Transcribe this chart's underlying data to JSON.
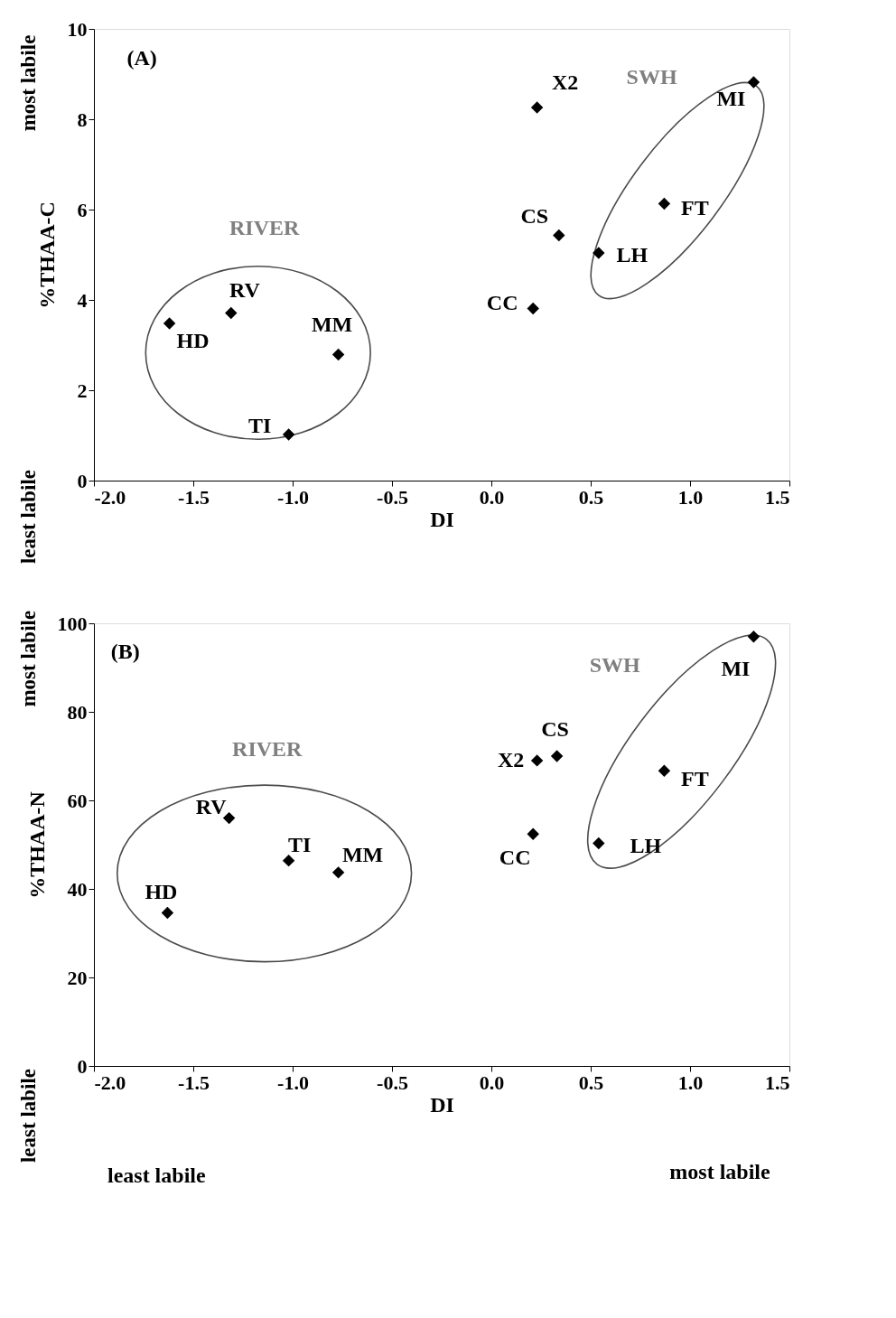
{
  "chart_data": [
    {
      "type": "scatter",
      "xlabel": "DI",
      "ylabel": "%THAA-C",
      "x": [
        -1.62,
        -1.31,
        -0.77,
        -1.02,
        0.21,
        0.34,
        0.23,
        0.54,
        0.87,
        1.32
      ],
      "series": [
        {
          "color": "#000000",
          "values": [
            3.48,
            3.71,
            2.79,
            1.02,
            3.81,
            5.43,
            8.26,
            5.04,
            6.13,
            8.82
          ]
        }
      ],
      "xlim": [
        -2,
        1.5
      ],
      "ylim": [
        0,
        10
      ],
      "xticks": [
        {
          "value": -2,
          "label": "-2.0"
        },
        {
          "value": -1.5,
          "label": "-1.5"
        },
        {
          "value": -1,
          "label": "-1.0"
        },
        {
          "value": -0.5,
          "label": "-0.5"
        },
        {
          "value": 0,
          "label": "0.0"
        },
        {
          "value": 0.5,
          "label": "0.5"
        },
        {
          "value": 1,
          "label": "1.0"
        },
        {
          "value": 1.5,
          "label": "1.5"
        }
      ],
      "yticks": [
        0,
        2,
        4,
        6,
        8,
        10
      ],
      "marker": "diamond",
      "grid": false,
      "annotations": [
        "(A)",
        "RIVER",
        "SWH",
        "most labile",
        "least labile",
        {
          "text": "HD",
          "x": -1.62,
          "y": 3.48
        },
        {
          "text": "RV",
          "x": -1.31,
          "y": 3.71
        },
        {
          "text": "MM",
          "x": -0.77,
          "y": 2.79
        },
        {
          "text": "TI",
          "x": -1.02,
          "y": 1.02
        },
        {
          "text": "CC",
          "x": 0.21,
          "y": 3.81
        },
        {
          "text": "CS",
          "x": 0.34,
          "y": 5.43
        },
        {
          "text": "X2",
          "x": 0.23,
          "y": 8.26
        },
        {
          "text": "LH",
          "x": 0.54,
          "y": 5.04
        },
        {
          "text": "FT",
          "x": 0.87,
          "y": 6.13
        },
        {
          "text": "MI",
          "x": 1.32,
          "y": 8.82
        }
      ]
    },
    {
      "type": "scatter",
      "xlabel": "DI",
      "ylabel": "%THAA-N",
      "x": [
        -1.63,
        -1.32,
        -1.02,
        -0.77,
        0.21,
        0.23,
        0.33,
        0.54,
        0.87,
        1.32
      ],
      "series": [
        {
          "color": "#000000",
          "values": [
            34.6,
            56.0,
            46.4,
            43.7,
            52.4,
            69.0,
            70.0,
            50.3,
            66.7,
            97.0
          ]
        }
      ],
      "xlim": [
        -2,
        1.5
      ],
      "ylim": [
        0,
        100
      ],
      "xticks": [
        {
          "value": -2,
          "label": "-2.0"
        },
        {
          "value": -1.5,
          "label": "-1.5"
        },
        {
          "value": -1,
          "label": "-1.0"
        },
        {
          "value": -0.5,
          "label": "-0.5"
        },
        {
          "value": 0,
          "label": "0.0"
        },
        {
          "value": 0.5,
          "label": "0.5"
        },
        {
          "value": 1,
          "label": "1.0"
        },
        {
          "value": 1.5,
          "label": "1.5"
        }
      ],
      "yticks": [
        0,
        20,
        40,
        60,
        80,
        100
      ],
      "marker": "diamond",
      "grid": false,
      "annotations": [
        "(B)",
        "RIVER",
        "SWH",
        "most labile",
        "least labile",
        "least labile",
        "most labile",
        {
          "text": "HD",
          "x": -1.63,
          "y": 34.6
        },
        {
          "text": "RV",
          "x": -1.32,
          "y": 56.0
        },
        {
          "text": "TI",
          "x": -1.02,
          "y": 46.4
        },
        {
          "text": "MM",
          "x": -0.77,
          "y": 43.7
        },
        {
          "text": "CC",
          "x": 0.21,
          "y": 52.4
        },
        {
          "text": "X2",
          "x": 0.23,
          "y": 69.0
        },
        {
          "text": "CS",
          "x": 0.33,
          "y": 70.0
        },
        {
          "text": "LH",
          "x": 0.54,
          "y": 50.3
        },
        {
          "text": "FT",
          "x": 0.87,
          "y": 66.7
        },
        {
          "text": "MI",
          "x": 1.32,
          "y": 97.0
        }
      ]
    }
  ]
}
